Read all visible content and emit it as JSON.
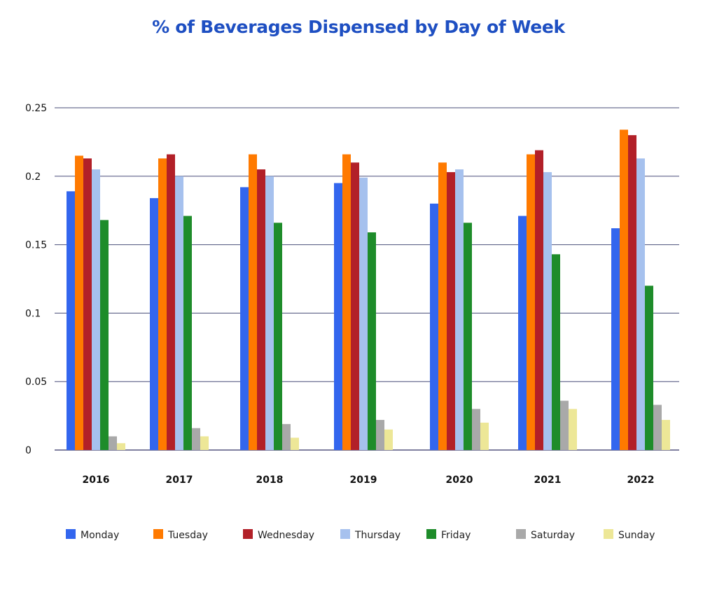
{
  "chart_data": {
    "type": "bar",
    "title": "% of Beverages Dispensed by Day of Week",
    "xlabel": "",
    "ylabel": "",
    "categories": [
      "2016",
      "2017",
      "2018",
      "2019",
      "2020",
      "2021",
      "2022"
    ],
    "ylim": [
      0,
      0.25
    ],
    "yticks": [
      0,
      0.05,
      0.1,
      0.15,
      0.2,
      0.25
    ],
    "ytick_labels": [
      "0",
      "0.05",
      "0.1",
      "0.15",
      "0.2",
      "0.25"
    ],
    "grid": true,
    "legend_position": "bottom",
    "series": [
      {
        "name": "Monday",
        "color": "#3366ee",
        "values": [
          0.189,
          0.184,
          0.192,
          0.195,
          0.18,
          0.171,
          0.162
        ]
      },
      {
        "name": "Tuesday",
        "color": "#ff7a00",
        "values": [
          0.215,
          0.213,
          0.216,
          0.216,
          0.21,
          0.216,
          0.234
        ]
      },
      {
        "name": "Wednesday",
        "color": "#b22028",
        "values": [
          0.213,
          0.216,
          0.205,
          0.21,
          0.203,
          0.219,
          0.23
        ]
      },
      {
        "name": "Thursday",
        "color": "#a6c1ee",
        "values": [
          0.205,
          0.2,
          0.2,
          0.199,
          0.205,
          0.203,
          0.213
        ]
      },
      {
        "name": "Friday",
        "color": "#1e8c2a",
        "values": [
          0.168,
          0.171,
          0.166,
          0.159,
          0.166,
          0.143,
          0.12
        ]
      },
      {
        "name": "Saturday",
        "color": "#a9a9a9",
        "values": [
          0.01,
          0.016,
          0.019,
          0.022,
          0.03,
          0.036,
          0.033
        ]
      },
      {
        "name": "Sunday",
        "color": "#ede797",
        "values": [
          0.005,
          0.01,
          0.009,
          0.015,
          0.02,
          0.03,
          0.022
        ]
      }
    ]
  }
}
